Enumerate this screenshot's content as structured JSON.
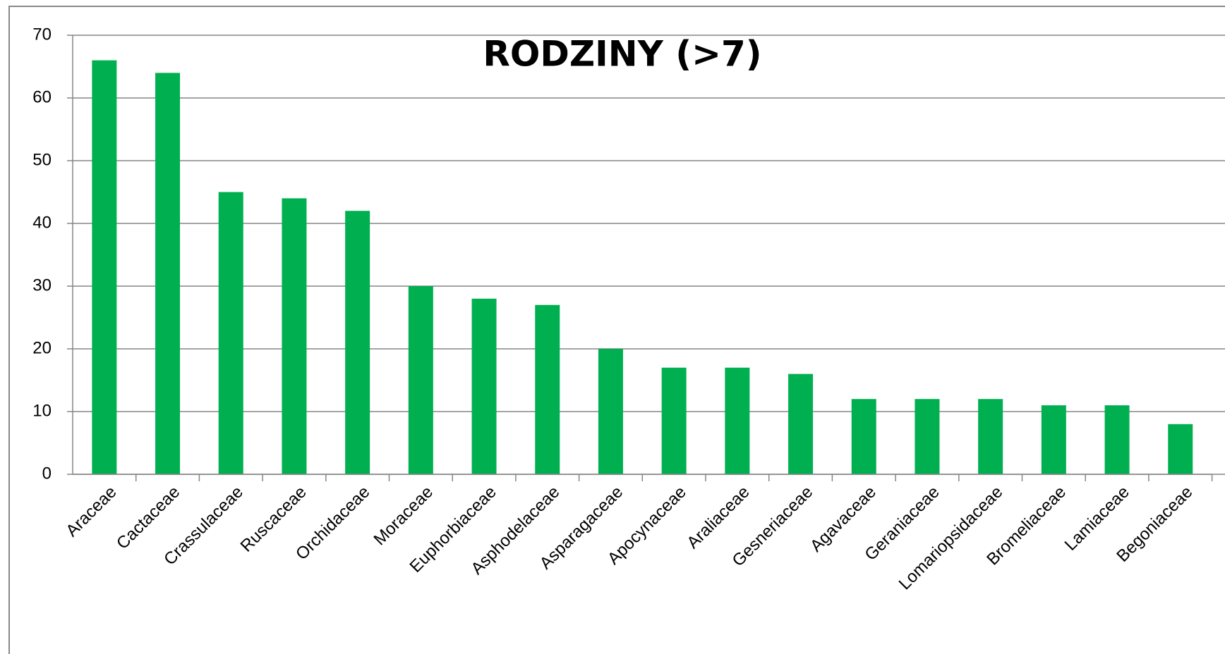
{
  "chart_data": {
    "type": "bar",
    "title": "RODZINY (>7)",
    "categories": [
      "Araceae",
      "Cactaceae",
      "Crassulaceae",
      "Ruscaceae",
      "Orchidaceae",
      "Moraceae",
      "Euphorbiaceae",
      "Asphodelaceae",
      "Asparagaceae",
      "Apocynaceae",
      "Araliaceae",
      "Gesneriaceae",
      "Agavaceae",
      "Geraniaceae",
      "Lomariopsidaceae",
      "Bromeliaceae",
      "Lamiaceae",
      "Begoniaceae"
    ],
    "values": [
      66,
      64,
      45,
      44,
      42,
      30,
      28,
      27,
      20,
      17,
      17,
      16,
      12,
      12,
      12,
      11,
      11,
      8
    ],
    "color": "#00b050",
    "ylim": [
      0,
      70
    ],
    "yticks": [
      0,
      10,
      20,
      30,
      40,
      50,
      60,
      70
    ],
    "grid": true
  }
}
